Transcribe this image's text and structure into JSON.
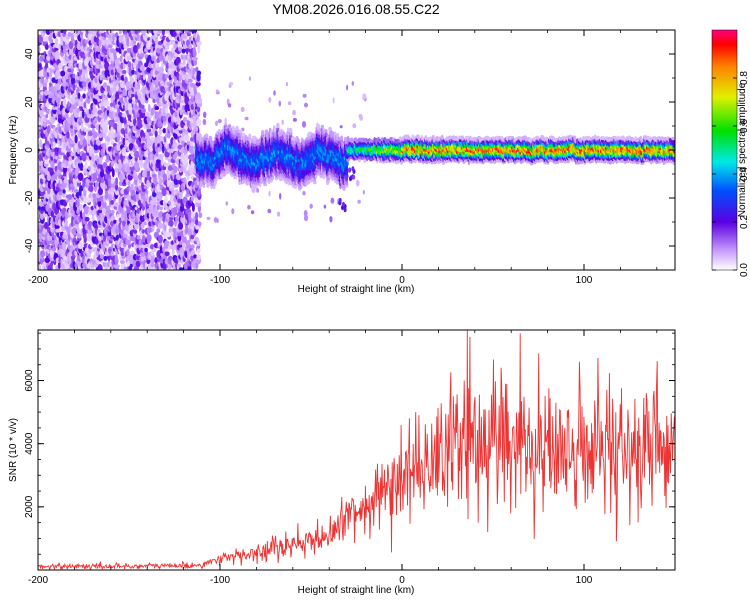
{
  "title": "YM08.2026.016.08.55.C22",
  "chart_data": [
    {
      "type": "heatmap",
      "xlabel": "Height of straight line (km)",
      "ylabel": "Frequency (Hz)",
      "xlim": [
        -200,
        150
      ],
      "ylim": [
        -50,
        50
      ],
      "xticks": [
        -200,
        -100,
        0,
        100
      ],
      "yticks": [
        -40,
        -20,
        0,
        20,
        40
      ],
      "colorbar": {
        "label": "Normalized spectral amplitude",
        "range": [
          0,
          1
        ],
        "ticks": [
          0.0,
          0.2,
          0.4,
          0.6,
          0.8
        ]
      },
      "regions": [
        {
          "x_range": [
            -200,
            -113
          ],
          "description": "broadband noise, amplitude ~0.0-0.2 across all frequencies"
        },
        {
          "x_range": [
            -113,
            -30
          ],
          "center_hz": -3,
          "width_hz": 10,
          "peak_amplitude": 0.4
        },
        {
          "x_range": [
            -30,
            150
          ],
          "center_hz": 0,
          "width_hz": 4,
          "peak_amplitude": 0.95
        }
      ]
    },
    {
      "type": "line",
      "xlabel": "Height of straight line (km)",
      "ylabel": "SNR (10 * v/v)",
      "xlim": [
        -200,
        150
      ],
      "ylim": [
        0,
        7600
      ],
      "xticks": [
        -200,
        -100,
        0,
        100
      ],
      "yticks": [
        2000,
        4000,
        6000
      ],
      "color": "#ee3333",
      "series": [
        {
          "name": "SNR",
          "x": [
            -200,
            -150,
            -110,
            -100,
            -80,
            -60,
            -40,
            -30,
            -20,
            -10,
            0,
            10,
            20,
            30,
            40,
            50,
            60,
            70,
            80,
            90,
            100,
            110,
            120,
            130,
            140,
            150
          ],
          "y": [
            120,
            120,
            150,
            350,
            600,
            800,
            1200,
            1600,
            2000,
            2600,
            3000,
            3400,
            3700,
            3900,
            4000,
            4100,
            4100,
            4000,
            3950,
            3900,
            3900,
            3850,
            3800,
            3800,
            3800,
            3800
          ]
        }
      ],
      "spikes": [
        {
          "x": 36,
          "y": 7600
        },
        {
          "x": 65,
          "y": 7500
        }
      ]
    }
  ]
}
